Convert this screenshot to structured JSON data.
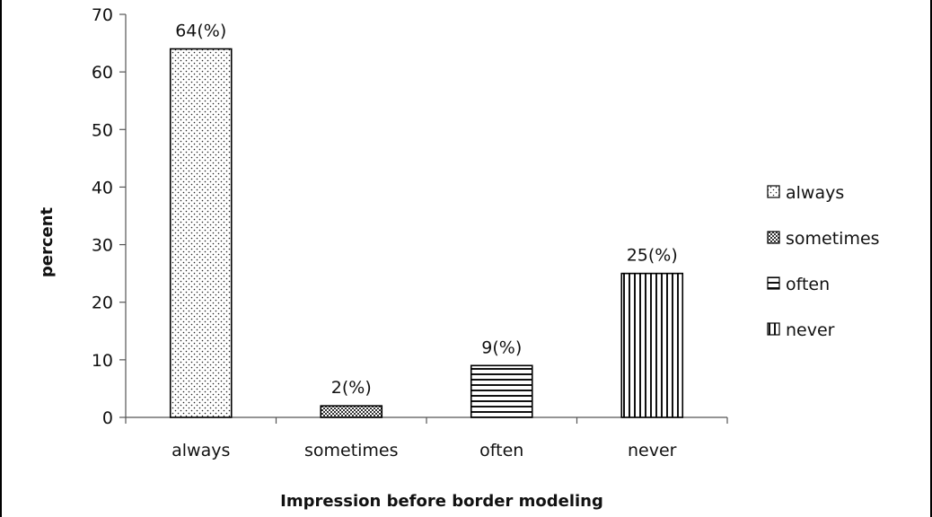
{
  "chart_data": {
    "type": "bar",
    "title": "",
    "xlabel": "Impression before border modeling",
    "ylabel": "percent",
    "categories": [
      "always",
      "sometimes",
      "often",
      "never"
    ],
    "values": [
      64,
      2,
      9,
      25
    ],
    "data_labels": [
      "64(%)",
      "2(%)",
      "9(%)",
      "25(%)"
    ],
    "ylim": [
      0,
      70
    ],
    "yticks": [
      0,
      10,
      20,
      30,
      40,
      50,
      60,
      70
    ],
    "grid": false,
    "legend": {
      "placement": "right",
      "entries": [
        "always",
        "sometimes",
        "often",
        "never"
      ]
    },
    "patterns": [
      "dots",
      "crosshatch",
      "horizontal-lines",
      "vertical-lines"
    ],
    "colors": {
      "bar_fill": "#ffffff",
      "stroke": "#000000",
      "text": "#111111"
    }
  }
}
